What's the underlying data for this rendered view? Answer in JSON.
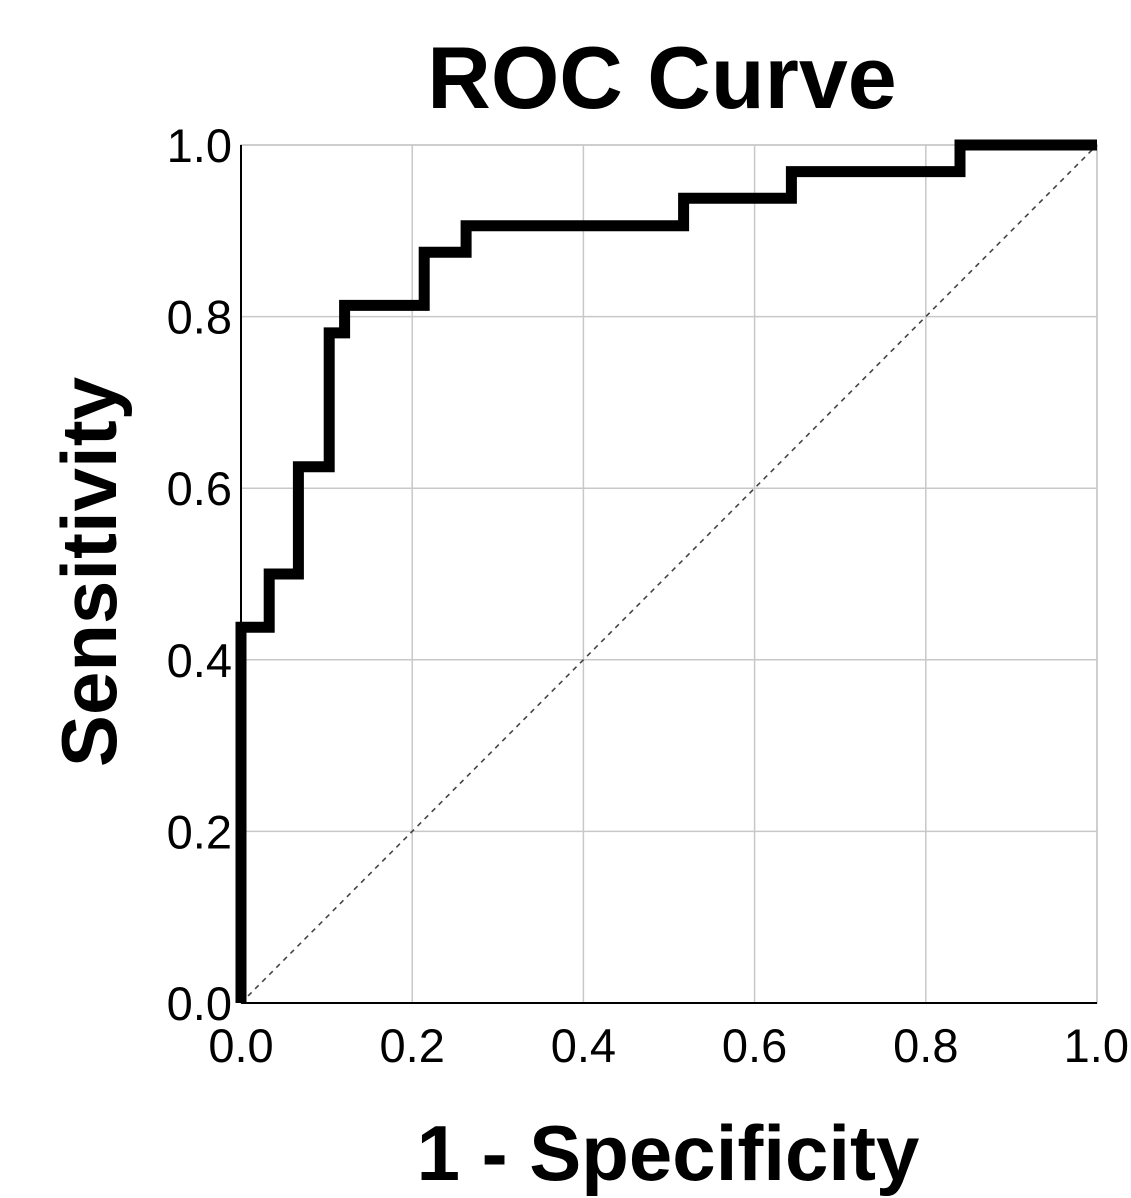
{
  "chart_data": {
    "type": "line",
    "title": "ROC Curve",
    "xlabel": "1 - Specificity",
    "ylabel": "Sensitivity",
    "xlim": [
      0.0,
      1.0
    ],
    "ylim": [
      0.0,
      1.0
    ],
    "x_ticks": [
      "0.0",
      "0.2",
      "0.4",
      "0.6",
      "0.8",
      "1.0"
    ],
    "y_ticks": [
      "0.0",
      "0.2",
      "0.4",
      "0.6",
      "0.8",
      "1.0"
    ],
    "grid": true,
    "series": [
      {
        "values": [
          {
            "x": 0.0,
            "y": 0.0
          },
          {
            "x": 0.0,
            "y": 0.438
          },
          {
            "x": 0.033,
            "y": 0.438
          },
          {
            "x": 0.033,
            "y": 0.5
          },
          {
            "x": 0.067,
            "y": 0.5
          },
          {
            "x": 0.067,
            "y": 0.625
          },
          {
            "x": 0.103,
            "y": 0.625
          },
          {
            "x": 0.103,
            "y": 0.781
          },
          {
            "x": 0.121,
            "y": 0.781
          },
          {
            "x": 0.121,
            "y": 0.813
          },
          {
            "x": 0.214,
            "y": 0.813
          },
          {
            "x": 0.214,
            "y": 0.875
          },
          {
            "x": 0.263,
            "y": 0.875
          },
          {
            "x": 0.263,
            "y": 0.906
          },
          {
            "x": 0.517,
            "y": 0.906
          },
          {
            "x": 0.517,
            "y": 0.938
          },
          {
            "x": 0.643,
            "y": 0.938
          },
          {
            "x": 0.643,
            "y": 0.969
          },
          {
            "x": 0.84,
            "y": 0.969
          },
          {
            "x": 0.84,
            "y": 1.0
          },
          {
            "x": 1.0,
            "y": 1.0
          }
        ],
        "color": "#000000",
        "style": "solid"
      },
      {
        "values": [
          {
            "x": 0.0,
            "y": 0.0
          },
          {
            "x": 1.0,
            "y": 1.0
          }
        ],
        "color": "#444444",
        "style": "dashed"
      }
    ]
  }
}
